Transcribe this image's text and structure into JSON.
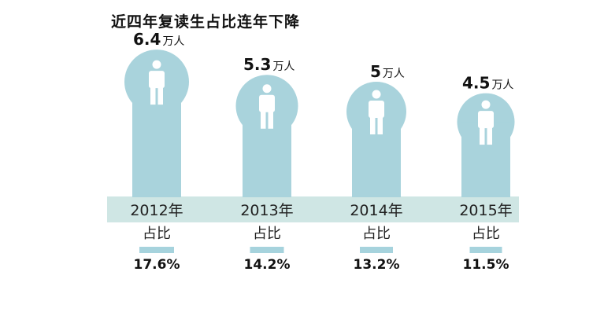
{
  "title": "近四年复读生占比连年下降",
  "colors": {
    "pillar": "#a9d3dc",
    "band": "#cfe6e4",
    "stripe": "#a6d3dd",
    "figure": "#ffffff"
  },
  "chart_data": {
    "type": "bar",
    "title": "近四年复读生占比连年下降",
    "categories": [
      "2012年",
      "2013年",
      "2014年",
      "2015年"
    ],
    "series": [
      {
        "values": [
          6.4,
          5.3,
          5,
          4.5
        ],
        "unit": "万人"
      },
      {
        "label": "占比",
        "values": [
          17.6,
          14.2,
          13.2,
          11.5
        ],
        "unit": "%"
      }
    ],
    "value_labels": [
      "6.4",
      "5.3",
      "5",
      "4.5"
    ],
    "unit_label": "万人",
    "share_label": "占比",
    "pct_labels": [
      "17.6%",
      "14.2%",
      "13.2%",
      "11.5%"
    ],
    "icon": "person-icon"
  }
}
